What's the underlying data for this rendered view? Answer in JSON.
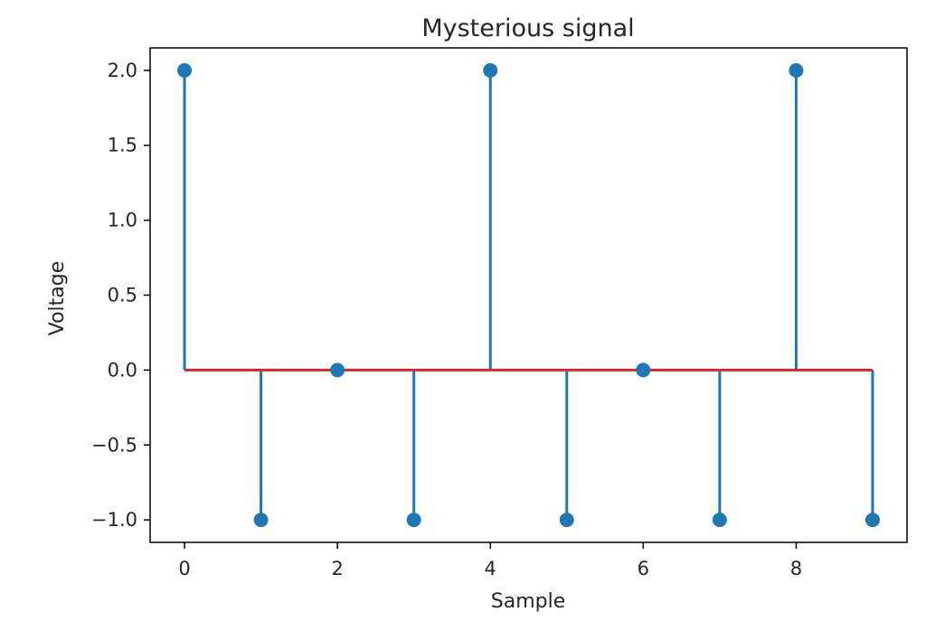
{
  "chart_data": {
    "type": "stem",
    "title": "Mysterious signal",
    "xlabel": "Sample",
    "ylabel": "Voltage",
    "x": [
      0,
      1,
      2,
      3,
      4,
      5,
      6,
      7,
      8,
      9
    ],
    "y": [
      2.0,
      -1.0,
      0.0,
      -1.0,
      2.0,
      -1.0,
      0.0,
      -1.0,
      2.0,
      -1.0
    ],
    "xlim": [
      -0.45,
      9.45
    ],
    "ylim": [
      -1.15,
      2.15
    ],
    "xticks": [
      "0",
      "2",
      "4",
      "6",
      "8"
    ],
    "yticks": [
      "2.0",
      "1.5",
      "1.0",
      "0.5",
      "0.0",
      "−0.5",
      "−1.0"
    ],
    "baseline": 0.0,
    "grid": false,
    "colors": {
      "stem": "#1f77b4",
      "baseline": "#d62728"
    }
  }
}
